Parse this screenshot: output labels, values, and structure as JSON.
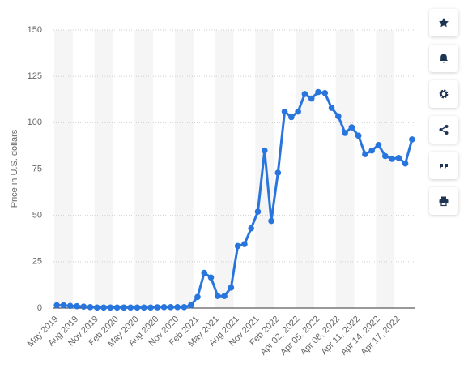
{
  "chart_data": {
    "type": "line",
    "y_label": "Price in U.S. dollars",
    "categories": [
      "May 2019",
      null,
      null,
      "Aug 2019",
      null,
      null,
      "Nov 2019",
      null,
      null,
      "Feb 2020",
      null,
      null,
      "May 2020",
      null,
      null,
      "Aug 2020",
      null,
      null,
      "Nov 2020",
      null,
      null,
      "Feb 2021",
      null,
      null,
      "May 2021",
      null,
      null,
      "Aug 2021",
      null,
      null,
      "Nov 2021",
      null,
      null,
      "Feb 2022",
      null,
      null,
      "Apr 02, 2022",
      null,
      null,
      "Apr 05, 2022",
      null,
      null,
      "Apr 08, 2022",
      null,
      null,
      "Apr 11, 2022",
      null,
      null,
      "Apr 14, 2022",
      null,
      null,
      "Apr 17, 2022",
      null,
      null
    ],
    "series": [
      {
        "color": "#2876dd",
        "values": [
          1.5,
          1.5,
          1.2,
          1,
          0.8,
          0.5,
          0.3,
          0.3,
          0.3,
          0.3,
          0.3,
          0.3,
          0.3,
          0.3,
          0.3,
          0.4,
          0.5,
          0.5,
          0.5,
          0.5,
          1.5,
          6,
          19,
          16.5,
          6.5,
          6.5,
          11,
          33.5,
          34.5,
          43,
          52,
          85,
          47,
          73,
          106,
          103,
          106,
          115.5,
          113,
          116.5,
          116,
          108,
          103.5,
          94.5,
          97.5,
          93,
          83,
          85,
          88,
          82,
          80.5,
          81,
          78,
          91
        ]
      }
    ],
    "ylim": [
      0,
      150
    ],
    "yticks": [
      0,
      25,
      50,
      75,
      100,
      125,
      150
    ],
    "grid": true
  }
}
